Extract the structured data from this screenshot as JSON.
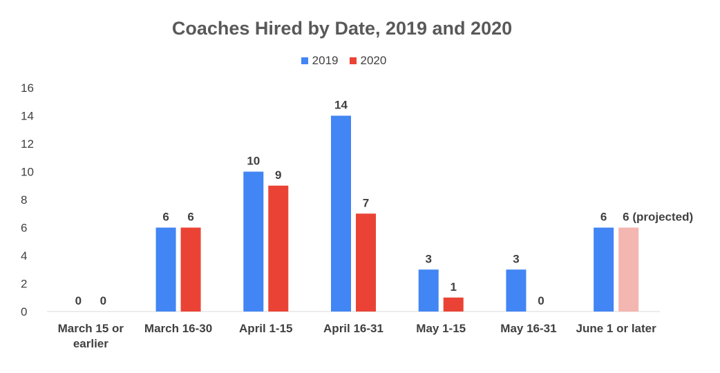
{
  "chart_data": {
    "type": "bar",
    "title": "Coaches Hired by Date, 2019 and 2020",
    "categories": [
      [
        "March 15 or",
        "earlier"
      ],
      [
        "March 16-30"
      ],
      [
        "April 1-15"
      ],
      [
        "April 16-31"
      ],
      [
        "May 1-15"
      ],
      [
        "May 16-31"
      ],
      [
        "June 1 or later"
      ]
    ],
    "series": [
      {
        "name": "2019",
        "color": "#4285F4",
        "values": [
          0,
          6,
          10,
          14,
          3,
          3,
          6
        ],
        "labels": [
          "0",
          "6",
          "10",
          "14",
          "3",
          "3",
          "6"
        ]
      },
      {
        "name": "2020",
        "color": "#EA4335",
        "values": [
          0,
          6,
          9,
          7,
          1,
          0,
          6
        ],
        "labels": [
          "0",
          "6",
          "9",
          "7",
          "1",
          "0",
          "6 (projected)"
        ],
        "projected_color": "#F4B6B0",
        "projected_index": 6
      }
    ],
    "yticks": [
      "0",
      "2",
      "4",
      "6",
      "8",
      "10",
      "12",
      "14",
      "16"
    ],
    "ylim": [
      0,
      16
    ],
    "legend_position": "top",
    "grid": false
  }
}
